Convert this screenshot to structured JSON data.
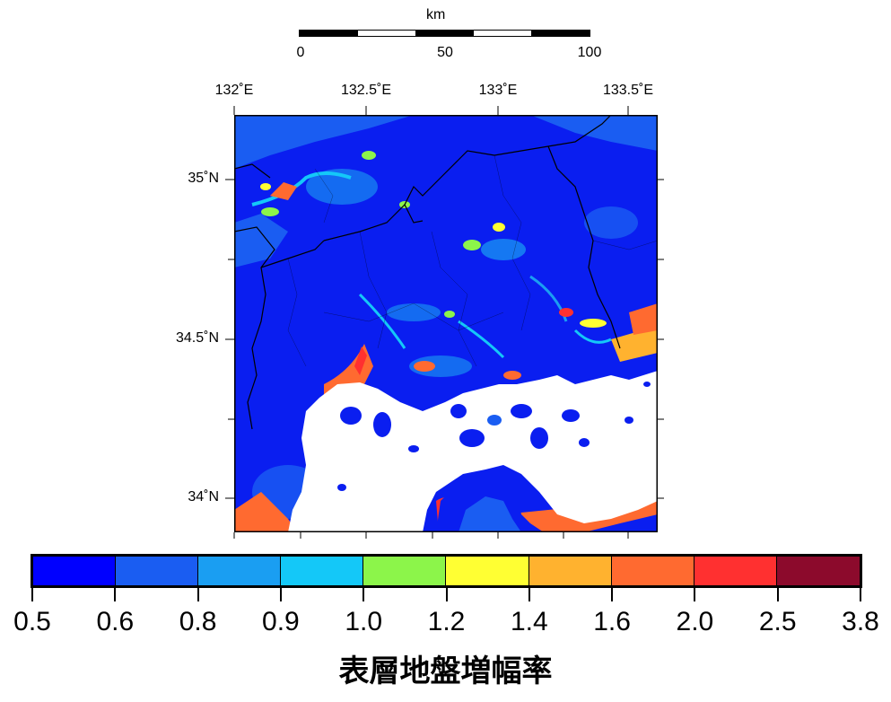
{
  "scale_bar": {
    "unit": "km",
    "labels": [
      "0",
      "50",
      "100"
    ],
    "segment_colors": [
      "#000000",
      "#ffffff",
      "#000000",
      "#ffffff",
      "#000000"
    ]
  },
  "map": {
    "lon_labels": [
      "132˚E",
      "132.5˚E",
      "133˚E",
      "133.5˚E"
    ],
    "lat_labels": [
      "35˚N",
      "34.5˚N",
      "34˚N"
    ],
    "sea_color": "#ffffff",
    "border_color": "#000000"
  },
  "colorbar": {
    "title": "表層地盤増幅率",
    "tick_labels": [
      "0.5",
      "0.6",
      "0.8",
      "0.9",
      "1.0",
      "1.2",
      "1.4",
      "1.6",
      "2.0",
      "2.5",
      "3.8"
    ],
    "colors": [
      "#0000ff",
      "#1a5df2",
      "#1a9ef2",
      "#14c8f8",
      "#8cf54a",
      "#ffff33",
      "#ffb22f",
      "#ff6a30",
      "#ff3030",
      "#8c0a2c"
    ]
  }
}
